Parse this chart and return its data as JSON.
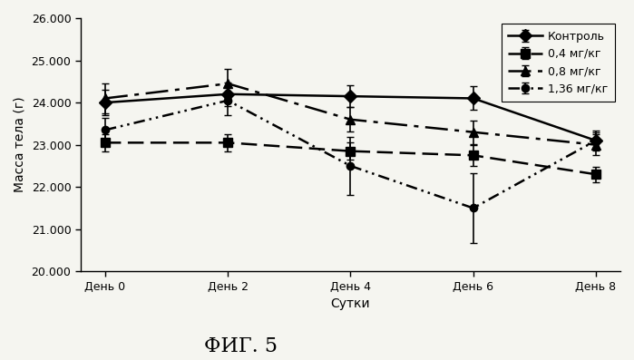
{
  "x_values": [
    0,
    2,
    4,
    6,
    8
  ],
  "x_labels": [
    "День 0",
    "День 2",
    "День 4",
    "День 6",
    "День 8"
  ],
  "series": [
    {
      "label": "Контроль",
      "y": [
        24000,
        24200,
        24150,
        24100,
        23100
      ],
      "yerr": [
        300,
        280,
        250,
        280,
        200
      ],
      "marker": "D",
      "markersize": 7,
      "linestyle": "-",
      "linewidth": 1.8,
      "dashes": null
    },
    {
      "label": "0,4 мг/кг",
      "y": [
        23050,
        23050,
        22850,
        22750,
        22300
      ],
      "yerr": [
        200,
        200,
        200,
        250,
        180
      ],
      "marker": "s",
      "markersize": 7,
      "linestyle": "dashed",
      "linewidth": 1.8,
      "dashes": [
        7,
        3
      ]
    },
    {
      "label": "0,8 мг/кг",
      "y": [
        24100,
        24450,
        23600,
        23300,
        23000
      ],
      "yerr": [
        350,
        350,
        290,
        280,
        240
      ],
      "marker": "^",
      "markersize": 7,
      "linestyle": "dashed",
      "linewidth": 1.8,
      "dashes": [
        10,
        3,
        2,
        3
      ]
    },
    {
      "label": "1,36 мг/кг",
      "y": [
        23350,
        24050,
        22500,
        21500,
        23100
      ],
      "yerr": [
        280,
        340,
        680,
        820,
        230
      ],
      "marker": "o",
      "markersize": 6,
      "linestyle": "dashdot",
      "linewidth": 1.8,
      "dashes": [
        5,
        2,
        1,
        2,
        1,
        2
      ]
    }
  ],
  "ylim": [
    20000,
    26000
  ],
  "yticks": [
    20000,
    21000,
    22000,
    23000,
    24000,
    25000,
    26000
  ],
  "ytick_labels": [
    "20.000",
    "21.000",
    "22.000",
    "23.000",
    "24.000",
    "25.000",
    "26.000"
  ],
  "ylabel": "Масса тела (г)",
  "xlabel": "Сутки",
  "fig_label": "ФИГ. 5",
  "color": "#000000",
  "background_color": "#f5f5f0",
  "capsize": 3,
  "tick_fontsize": 9,
  "label_fontsize": 10,
  "legend_fontsize": 9,
  "fig_label_fontsize": 16
}
